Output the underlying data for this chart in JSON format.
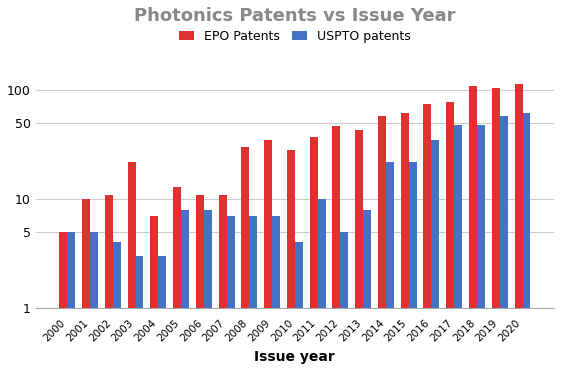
{
  "title": "Photonics Patents vs Issue Year",
  "xlabel": "Issue year",
  "years": [
    2000,
    2001,
    2002,
    2003,
    2004,
    2005,
    2006,
    2007,
    2008,
    2009,
    2010,
    2011,
    2012,
    2013,
    2014,
    2015,
    2016,
    2017,
    2018,
    2019,
    2020
  ],
  "uspto": [
    5,
    5,
    4,
    3,
    3,
    8,
    8,
    7,
    7,
    7,
    4,
    10,
    5,
    8,
    22,
    22,
    35,
    48,
    48,
    58,
    62
  ],
  "epo": [
    5,
    10,
    11,
    22,
    7,
    13,
    11,
    11,
    30,
    35,
    28,
    37,
    47,
    43,
    58,
    62,
    75,
    78,
    110,
    105,
    115
  ],
  "uspto_color": "#4472C4",
  "epo_color": "#E03030",
  "legend_uspto": "USPTO patents",
  "legend_epo": "EPO Patents",
  "title_color": "#888888",
  "background_color": "#FFFFFF",
  "bar_width": 0.35,
  "yticks": [
    1,
    5,
    10,
    50,
    100
  ],
  "ytick_labels": [
    "1",
    "5",
    "10",
    "50",
    "100"
  ],
  "ylim_min": 1,
  "ylim_max": 180,
  "grid_color": "#CCCCCC"
}
